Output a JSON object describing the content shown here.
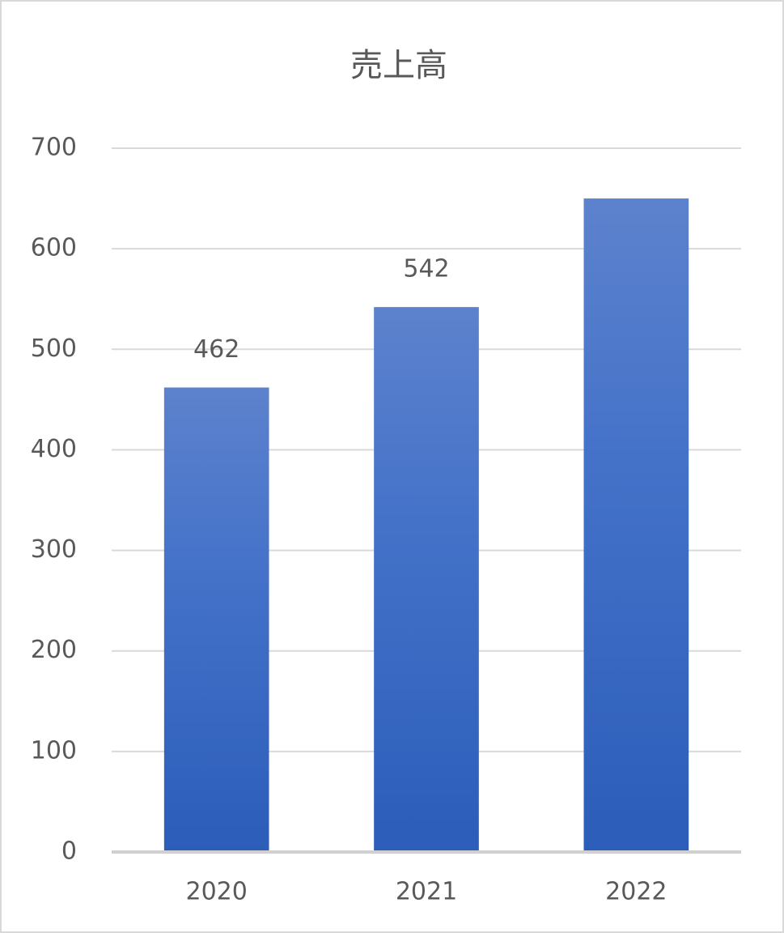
{
  "chart_data": {
    "type": "bar",
    "title": "売上高",
    "categories": [
      "2020",
      "2021",
      "2022"
    ],
    "values": [
      462,
      542,
      650
    ],
    "value_labels": [
      "462",
      "542",
      null
    ],
    "color": "#4472c4",
    "ylim": [
      0,
      700
    ],
    "yticks": [
      0,
      100,
      200,
      300,
      400,
      500,
      600,
      700
    ],
    "grid": true
  }
}
